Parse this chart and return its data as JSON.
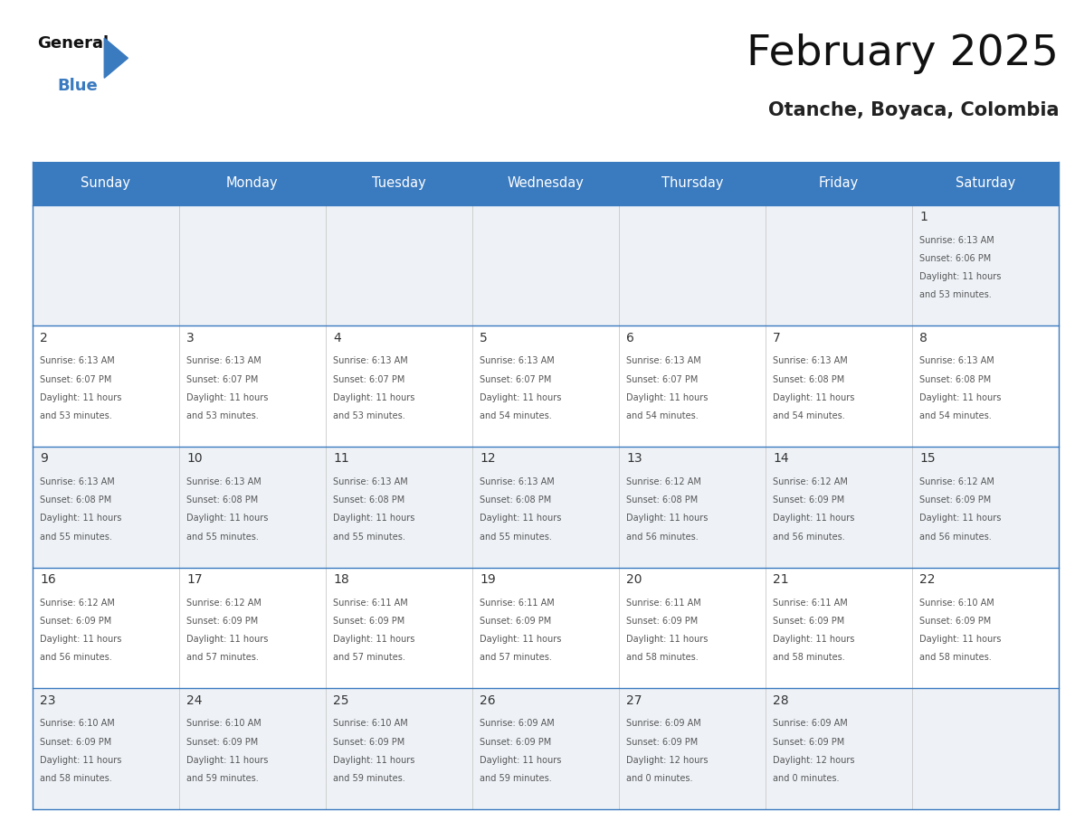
{
  "title": "February 2025",
  "subtitle": "Otanche, Boyaca, Colombia",
  "header_color": "#3a7abf",
  "header_text_color": "#ffffff",
  "days_of_week": [
    "Sunday",
    "Monday",
    "Tuesday",
    "Wednesday",
    "Thursday",
    "Friday",
    "Saturday"
  ],
  "cell_bg_odd": "#eef2f7",
  "cell_bg_even": "#ffffff",
  "border_color": "#3a7abf",
  "day_num_color": "#333333",
  "text_color": "#555555",
  "logo_general_color": "#111111",
  "logo_blue_color": "#3a7abf",
  "logo_triangle_color": "#3a7abf",
  "calendar": [
    [
      null,
      null,
      null,
      null,
      null,
      null,
      1
    ],
    [
      2,
      3,
      4,
      5,
      6,
      7,
      8
    ],
    [
      9,
      10,
      11,
      12,
      13,
      14,
      15
    ],
    [
      16,
      17,
      18,
      19,
      20,
      21,
      22
    ],
    [
      23,
      24,
      25,
      26,
      27,
      28,
      null
    ]
  ],
  "sunrise": {
    "1": "6:13 AM",
    "2": "6:13 AM",
    "3": "6:13 AM",
    "4": "6:13 AM",
    "5": "6:13 AM",
    "6": "6:13 AM",
    "7": "6:13 AM",
    "8": "6:13 AM",
    "9": "6:13 AM",
    "10": "6:13 AM",
    "11": "6:13 AM",
    "12": "6:13 AM",
    "13": "6:12 AM",
    "14": "6:12 AM",
    "15": "6:12 AM",
    "16": "6:12 AM",
    "17": "6:12 AM",
    "18": "6:11 AM",
    "19": "6:11 AM",
    "20": "6:11 AM",
    "21": "6:11 AM",
    "22": "6:10 AM",
    "23": "6:10 AM",
    "24": "6:10 AM",
    "25": "6:10 AM",
    "26": "6:09 AM",
    "27": "6:09 AM",
    "28": "6:09 AM"
  },
  "sunset": {
    "1": "6:06 PM",
    "2": "6:07 PM",
    "3": "6:07 PM",
    "4": "6:07 PM",
    "5": "6:07 PM",
    "6": "6:07 PM",
    "7": "6:08 PM",
    "8": "6:08 PM",
    "9": "6:08 PM",
    "10": "6:08 PM",
    "11": "6:08 PM",
    "12": "6:08 PM",
    "13": "6:08 PM",
    "14": "6:09 PM",
    "15": "6:09 PM",
    "16": "6:09 PM",
    "17": "6:09 PM",
    "18": "6:09 PM",
    "19": "6:09 PM",
    "20": "6:09 PM",
    "21": "6:09 PM",
    "22": "6:09 PM",
    "23": "6:09 PM",
    "24": "6:09 PM",
    "25": "6:09 PM",
    "26": "6:09 PM",
    "27": "6:09 PM",
    "28": "6:09 PM"
  },
  "daylight": {
    "1": "11 hours\nand 53 minutes.",
    "2": "11 hours\nand 53 minutes.",
    "3": "11 hours\nand 53 minutes.",
    "4": "11 hours\nand 53 minutes.",
    "5": "11 hours\nand 54 minutes.",
    "6": "11 hours\nand 54 minutes.",
    "7": "11 hours\nand 54 minutes.",
    "8": "11 hours\nand 54 minutes.",
    "9": "11 hours\nand 55 minutes.",
    "10": "11 hours\nand 55 minutes.",
    "11": "11 hours\nand 55 minutes.",
    "12": "11 hours\nand 55 minutes.",
    "13": "11 hours\nand 56 minutes.",
    "14": "11 hours\nand 56 minutes.",
    "15": "11 hours\nand 56 minutes.",
    "16": "11 hours\nand 56 minutes.",
    "17": "11 hours\nand 57 minutes.",
    "18": "11 hours\nand 57 minutes.",
    "19": "11 hours\nand 57 minutes.",
    "20": "11 hours\nand 58 minutes.",
    "21": "11 hours\nand 58 minutes.",
    "22": "11 hours\nand 58 minutes.",
    "23": "11 hours\nand 58 minutes.",
    "24": "11 hours\nand 59 minutes.",
    "25": "11 hours\nand 59 minutes.",
    "26": "11 hours\nand 59 minutes.",
    "27": "12 hours\nand 0 minutes.",
    "28": "12 hours\nand 0 minutes."
  },
  "figsize": [
    11.88,
    9.18
  ],
  "dpi": 100
}
